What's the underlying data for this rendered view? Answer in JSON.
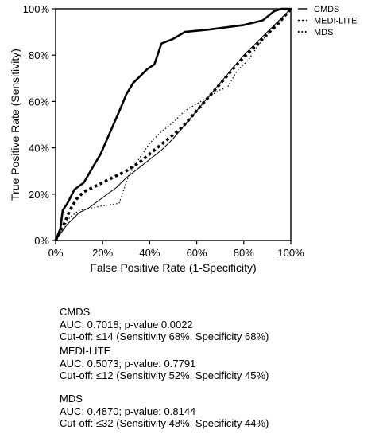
{
  "chart_data": {
    "type": "line",
    "xlabel": "False Positive Rate (1-Specificity)",
    "ylabel": "True Positive Rate (Sensitivity)",
    "xlim": [
      0,
      100
    ],
    "ylim": [
      0,
      100
    ],
    "x_ticks": [
      "0%",
      "20%",
      "40%",
      "60%",
      "80%",
      "100%"
    ],
    "y_ticks": [
      "0%",
      "20%",
      "40%",
      "60%",
      "80%",
      "100%"
    ],
    "grid": false,
    "legend_position": "top-right",
    "series": [
      {
        "name": "CMDS",
        "style": "solid-thick",
        "points": [
          [
            0,
            0
          ],
          [
            2,
            5
          ],
          [
            3,
            13
          ],
          [
            5,
            16
          ],
          [
            8,
            22
          ],
          [
            12,
            25
          ],
          [
            16,
            32
          ],
          [
            19,
            37
          ],
          [
            22,
            44
          ],
          [
            25,
            51
          ],
          [
            28,
            58
          ],
          [
            30,
            63
          ],
          [
            33,
            68
          ],
          [
            36,
            71
          ],
          [
            39,
            74
          ],
          [
            42,
            76
          ],
          [
            45,
            85
          ],
          [
            50,
            87
          ],
          [
            55,
            90
          ],
          [
            65,
            91
          ],
          [
            80,
            93
          ],
          [
            88,
            95
          ],
          [
            93,
            99
          ],
          [
            96,
            100
          ],
          [
            100,
            100
          ]
        ]
      },
      {
        "name": "MEDI-LITE",
        "style": "solid-thin",
        "points": [
          [
            0,
            0
          ],
          [
            5,
            7
          ],
          [
            10,
            12
          ],
          [
            14,
            14
          ],
          [
            18,
            17
          ],
          [
            22,
            20
          ],
          [
            26,
            23
          ],
          [
            30,
            27
          ],
          [
            35,
            31
          ],
          [
            40,
            35
          ],
          [
            45,
            39
          ],
          [
            50,
            44
          ],
          [
            55,
            50
          ],
          [
            60,
            56
          ],
          [
            65,
            62
          ],
          [
            70,
            68
          ],
          [
            75,
            74
          ],
          [
            80,
            80
          ],
          [
            85,
            85
          ],
          [
            90,
            90
          ],
          [
            95,
            95
          ],
          [
            100,
            100
          ]
        ]
      },
      {
        "name": "MDS",
        "style": "dotted-fine",
        "points": [
          [
            0,
            0
          ],
          [
            3,
            5
          ],
          [
            6,
            10
          ],
          [
            10,
            13
          ],
          [
            15,
            14
          ],
          [
            20,
            15
          ],
          [
            27,
            16
          ],
          [
            31,
            28
          ],
          [
            34,
            33
          ],
          [
            40,
            42
          ],
          [
            45,
            47
          ],
          [
            50,
            51
          ],
          [
            55,
            56
          ],
          [
            60,
            59
          ],
          [
            65,
            62
          ],
          [
            70,
            65
          ],
          [
            73,
            66
          ],
          [
            77,
            73
          ],
          [
            82,
            78
          ],
          [
            86,
            84
          ],
          [
            90,
            89
          ],
          [
            95,
            95
          ],
          [
            100,
            100
          ]
        ]
      },
      {
        "name": "",
        "style": "dotted-bold",
        "points": [
          [
            0,
            0
          ],
          [
            2,
            4
          ],
          [
            4,
            8
          ],
          [
            6,
            13
          ],
          [
            9,
            18
          ],
          [
            12,
            21
          ],
          [
            18,
            24
          ],
          [
            24,
            27
          ],
          [
            30,
            30
          ],
          [
            36,
            34
          ],
          [
            42,
            39
          ],
          [
            48,
            44
          ],
          [
            54,
            49
          ],
          [
            60,
            56
          ],
          [
            66,
            63
          ],
          [
            72,
            70
          ],
          [
            78,
            77
          ],
          [
            84,
            83
          ],
          [
            90,
            89
          ],
          [
            95,
            94
          ],
          [
            100,
            100
          ]
        ]
      }
    ]
  },
  "legend": {
    "entries": [
      {
        "symbol": "—",
        "label": "CMDS"
      },
      {
        "symbol": "---",
        "label": "MEDI-LITE"
      },
      {
        "symbol": "· · ·",
        "label": "MDS"
      }
    ]
  },
  "stats": {
    "cmds": {
      "name": "CMDS",
      "auc": "AUC: 0.7018; p-value 0.0022",
      "cutoff": "Cut-off: ≤14 (Sensitivity 68%, Specificity 68%)"
    },
    "medi": {
      "name": "MEDI-LITE",
      "auc": "AUC: 0.5073; p-value: 0.7791",
      "cutoff": "Cut-off: ≤12 (Sensitivity 52%, Specificity 45%)"
    },
    "mds": {
      "name": "MDS",
      "auc": "AUC: 0.4870; p-value: 0.8144",
      "cutoff": "Cut-off: ≤32 (Sensitivity 48%, Specificity 44%)"
    }
  }
}
